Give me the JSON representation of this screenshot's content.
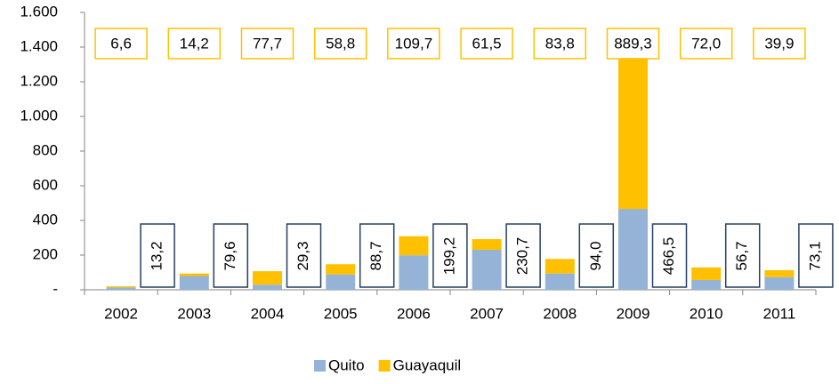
{
  "chart_data": {
    "type": "stacked_bar",
    "categories": [
      "2002",
      "2003",
      "2004",
      "2005",
      "2006",
      "2007",
      "2008",
      "2009",
      "2010",
      "2011"
    ],
    "series": [
      {
        "name": "Quito",
        "color": "#95b3d7",
        "label_border": "#254061",
        "values": [
          13.2,
          79.6,
          29.3,
          88.7,
          199.2,
          230.7,
          94.0,
          466.5,
          56.7,
          73.1
        ],
        "value_labels": [
          "13,2",
          "79,6",
          "29,3",
          "88,7",
          "199,2",
          "230,7",
          "94,0",
          "466,5",
          "56,7",
          "73,1"
        ]
      },
      {
        "name": "Guayaquil",
        "color": "#ffc000",
        "label_border": "#ffc000",
        "values": [
          6.6,
          14.2,
          77.7,
          58.8,
          109.7,
          61.5,
          83.8,
          889.3,
          72.0,
          39.9
        ],
        "value_labels": [
          "6,6",
          "14,2",
          "77,7",
          "58,8",
          "109,7",
          "61,5",
          "83,8",
          "889,3",
          "72,0",
          "39,9"
        ]
      }
    ],
    "ylim": [
      0,
      1600
    ],
    "yticks": [
      {
        "value": 0,
        "label": "-"
      },
      200,
      400,
      600,
      800,
      {
        "value": 1000,
        "label": "1.000"
      },
      {
        "value": 1200,
        "label": "1.200"
      },
      {
        "value": 1400,
        "label": "1.400"
      },
      {
        "value": 1600,
        "label": "1.600"
      }
    ],
    "grid": false,
    "legend": "bottom"
  }
}
